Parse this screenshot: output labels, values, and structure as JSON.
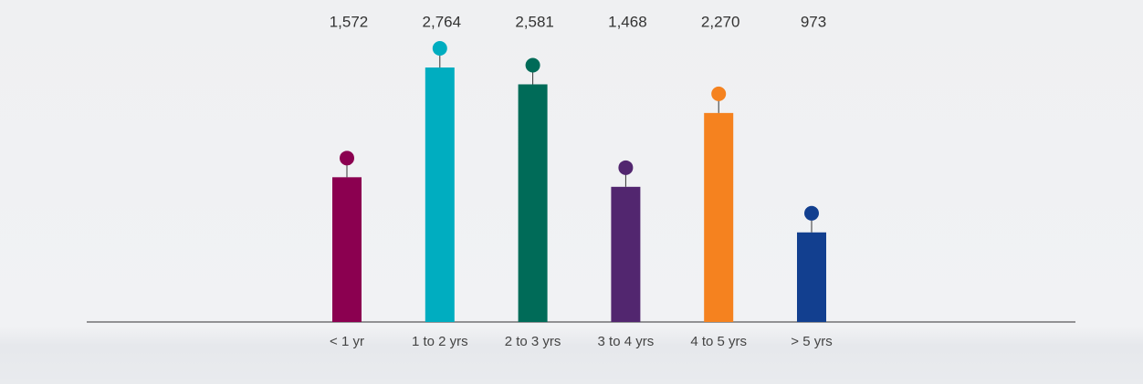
{
  "chart_data": {
    "type": "bar",
    "categories": [
      "< 1 yr",
      "1 to 2 yrs",
      "2 to 3 yrs",
      "3 to 4 yrs",
      "4 to 5 yrs",
      "> 5 yrs"
    ],
    "values": [
      1572,
      2764,
      2581,
      1468,
      2270,
      973
    ],
    "value_labels": [
      "1,572",
      "2,764",
      "2,581",
      "1,468",
      "2,270",
      "973"
    ],
    "colors": [
      "#8b0050",
      "#00adc0",
      "#006b58",
      "#52266f",
      "#f5821f",
      "#123f8f"
    ]
  }
}
